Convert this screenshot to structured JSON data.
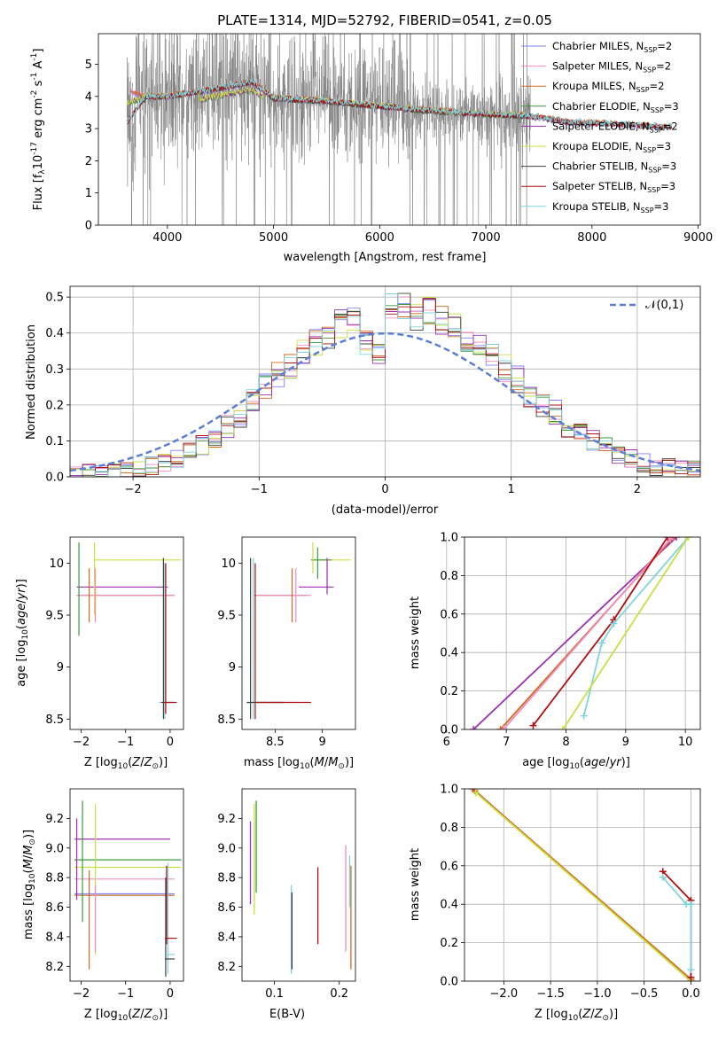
{
  "colors": [
    "#8080ff",
    "#f08cc0",
    "#d2691e",
    "#3c9a3c",
    "#9b30b0",
    "#c8e043",
    "#404040",
    "#b01010",
    "#7fd4dc"
  ],
  "series_names": [
    [
      "Chabrier MILES, N",
      "SSP",
      "=2"
    ],
    [
      "Salpeter MILES, N",
      "SSP",
      "=2"
    ],
    [
      "Kroupa MILES, N",
      "SSP",
      "=2"
    ],
    [
      "Chabrier ELODIE, N",
      "SSP",
      "=3"
    ],
    [
      "Salpeter ELODIE, N",
      "SSP",
      "=2"
    ],
    [
      "Kroupa ELODIE, N",
      "SSP",
      "=3"
    ],
    [
      "Chabrier STELIB, N",
      "SSP",
      "=3"
    ],
    [
      "Salpeter STELIB, N",
      "SSP",
      "=3"
    ],
    [
      "Kroupa STELIB, N",
      "SSP",
      "=3"
    ]
  ],
  "chart_data": [
    {
      "type": "line",
      "title": "PLATE=1314, MJD=52792, FIBERID=0541, z=0.05",
      "xlabel": "wavelength [Angstrom, rest frame]",
      "ylabel": "Flux [f_λ 10^-17 erg cm^-2 s^-1 A^-1]",
      "xlim": [
        3350,
        9020
      ],
      "ylim": [
        0,
        5.95
      ],
      "xticks": [
        4000,
        5000,
        6000,
        7000,
        8000,
        9000
      ],
      "yticks": [
        0,
        1,
        2,
        3,
        4,
        5
      ],
      "legend": "top-right",
      "data_color": "#808080",
      "data_range": [
        3620,
        7420
      ],
      "continuum": [
        [
          3700,
          4.0
        ],
        [
          4000,
          4.0
        ],
        [
          4300,
          4.15
        ],
        [
          4800,
          4.45
        ],
        [
          5000,
          3.95
        ],
        [
          5500,
          3.85
        ],
        [
          6000,
          3.7
        ],
        [
          6500,
          3.55
        ],
        [
          7000,
          3.45
        ],
        [
          7400,
          3.4
        ],
        [
          7800,
          3.2
        ],
        [
          8200,
          3.15
        ],
        [
          8700,
          3.05
        ]
      ],
      "model_groups": [
        {
          "series": [
            0,
            1,
            2
          ],
          "start_value": 4.2
        },
        {
          "series": [
            3,
            4,
            5
          ],
          "start_value": 3.8
        },
        {
          "series": [
            6,
            7,
            8
          ],
          "start_value": 3.2
        }
      ]
    },
    {
      "type": "line",
      "xlabel": "(data-model)/error",
      "ylabel": "Normed distribution",
      "xlim": [
        -2.5,
        2.5
      ],
      "ylim": [
        0,
        0.53
      ],
      "xticks": [
        -2,
        -1,
        0,
        1,
        2
      ],
      "yticks": [
        0.0,
        0.1,
        0.2,
        0.3,
        0.4,
        0.5
      ],
      "grid": true,
      "legend": "top-right",
      "gaussian": {
        "label": "𝒩(0,1)",
        "mean": 0,
        "sigma": 1,
        "color": "#5b7fd8"
      },
      "histogram": {
        "bin_width": 0.1,
        "x_start": -2.5,
        "heights": [
          0.01,
          0.01,
          0.01,
          0.01,
          0.02,
          0.02,
          0.03,
          0.04,
          0.05,
          0.07,
          0.09,
          0.11,
          0.14,
          0.17,
          0.21,
          0.25,
          0.28,
          0.31,
          0.34,
          0.37,
          0.4,
          0.42,
          0.43,
          0.38,
          0.34,
          0.47,
          0.47,
          0.45,
          0.46,
          0.43,
          0.42,
          0.37,
          0.36,
          0.33,
          0.3,
          0.27,
          0.23,
          0.2,
          0.18,
          0.14,
          0.12,
          0.1,
          0.08,
          0.06,
          0.05,
          0.04,
          0.03,
          0.03,
          0.02,
          0.02
        ]
      }
    },
    {
      "type": "scatter",
      "xlabel": "Z [log10(Z/Z⊙)]",
      "ylabel": "age  [log10(age/yr)]",
      "xlim": [
        -2.25,
        0.3
      ],
      "ylim": [
        8.4,
        10.25
      ],
      "xticks": [
        -2,
        -1,
        0
      ],
      "yticks": [
        8.5,
        9.0,
        9.5,
        10.0
      ]
    },
    {
      "type": "scatter",
      "xlabel": "mass [log10(M/M⊙)]",
      "xlim": [
        8.15,
        9.35
      ],
      "ylim": [
        8.4,
        10.25
      ],
      "xticks": [
        8.5,
        9.0
      ],
      "yticks": [
        8.5,
        9.0,
        9.5,
        10.0
      ]
    },
    {
      "type": "line",
      "xlabel": "age  [log10(age/yr)]",
      "ylabel": "mass weight",
      "xlim": [
        6.3,
        10.25
      ],
      "ylim": [
        0,
        1
      ],
      "xticks": [
        6,
        7,
        8,
        9,
        10
      ],
      "yticks": [
        0.0,
        0.2,
        0.4,
        0.6,
        0.8,
        1.0
      ],
      "grid": true,
      "series": [
        {
          "color_index": 4,
          "points": [
            [
              6.45,
              0.0
            ],
            [
              9.85,
              1.0
            ]
          ]
        },
        {
          "color_index": 2,
          "points": [
            [
              6.9,
              0.0
            ],
            [
              9.8,
              1.0
            ]
          ]
        },
        {
          "color_index": 1,
          "points": [
            [
              6.95,
              0.0
            ],
            [
              9.75,
              0.99
            ]
          ]
        },
        {
          "color_index": 7,
          "points": [
            [
              7.45,
              0.02
            ],
            [
              8.8,
              0.57
            ],
            [
              9.7,
              1.0
            ]
          ]
        },
        {
          "color_index": 8,
          "points": [
            [
              8.3,
              0.07
            ],
            [
              8.6,
              0.45
            ],
            [
              8.8,
              0.55
            ],
            [
              10.05,
              1.0
            ]
          ]
        },
        {
          "color_index": 5,
          "points": [
            [
              7.95,
              0.0
            ],
            [
              10.05,
              1.0
            ]
          ]
        }
      ]
    },
    {
      "type": "scatter",
      "xlabel": "Z [log10(Z/Z⊙)]",
      "ylabel": "mass [log10(M/M⊙)]",
      "xlim": [
        -2.25,
        0.3
      ],
      "ylim": [
        8.1,
        9.4
      ],
      "xticks": [
        -2,
        -1,
        0
      ],
      "yticks": [
        8.2,
        8.4,
        8.6,
        8.8,
        9.0,
        9.2
      ]
    },
    {
      "type": "scatter",
      "xlabel": "E(B-V)",
      "xlim": [
        0.05,
        0.225
      ],
      "ylim": [
        8.1,
        9.4
      ],
      "xticks": [
        0.1,
        0.2
      ],
      "yticks": [
        8.2,
        8.4,
        8.6,
        8.8,
        9.0,
        9.2
      ],
      "segments": [
        {
          "color_index": 4,
          "x": 0.063,
          "y": [
            8.62,
            9.18
          ]
        },
        {
          "color_index": 5,
          "x": 0.069,
          "y": [
            8.55,
            9.3
          ]
        },
        {
          "color_index": 3,
          "x": 0.072,
          "y": [
            8.7,
            9.32
          ]
        },
        {
          "color_index": 8,
          "x": 0.126,
          "y": [
            8.15,
            8.75
          ]
        },
        {
          "color_index": 6,
          "x": 0.127,
          "y": [
            8.18,
            8.7
          ]
        },
        {
          "color_index": 7,
          "x": 0.167,
          "y": [
            8.35,
            8.87
          ]
        },
        {
          "color_index": 1,
          "x": 0.21,
          "y": [
            8.3,
            9.02
          ]
        },
        {
          "color_index": 2,
          "x": 0.218,
          "y": [
            8.18,
            8.88
          ]
        },
        {
          "color_index": 8,
          "x": 0.216,
          "y": [
            8.6,
            8.95
          ]
        }
      ]
    },
    {
      "type": "line",
      "xlabel": "Z [log10(Z/Z⊙)]",
      "ylabel": "mass weight",
      "xlim": [
        -2.42,
        0.1
      ],
      "ylim": [
        0,
        1
      ],
      "xticks": [
        -2.0,
        -1.5,
        -1.0,
        -0.5,
        0.0
      ],
      "yticks": [
        0.0,
        0.2,
        0.4,
        0.6,
        0.8,
        1.0
      ],
      "grid": true,
      "series": [
        {
          "color_index": 4,
          "points": [
            [
              -2.33,
              1.0
            ],
            [
              0.0,
              0.0
            ]
          ]
        },
        {
          "color_index": 2,
          "points": [
            [
              -2.31,
              0.99
            ],
            [
              0.0,
              0.01
            ]
          ]
        },
        {
          "color_index": 5,
          "points": [
            [
              -2.3,
              0.98
            ],
            [
              0.0,
              0.0
            ]
          ]
        },
        {
          "color_index": 7,
          "points": [
            [
              -0.3,
              0.57
            ],
            [
              0.0,
              0.42
            ],
            [
              0.0,
              0.02
            ]
          ]
        },
        {
          "color_index": 8,
          "points": [
            [
              -0.3,
              0.54
            ],
            [
              -0.05,
              0.4
            ],
            [
              0.0,
              0.4
            ],
            [
              0.0,
              0.06
            ]
          ]
        }
      ]
    }
  ]
}
